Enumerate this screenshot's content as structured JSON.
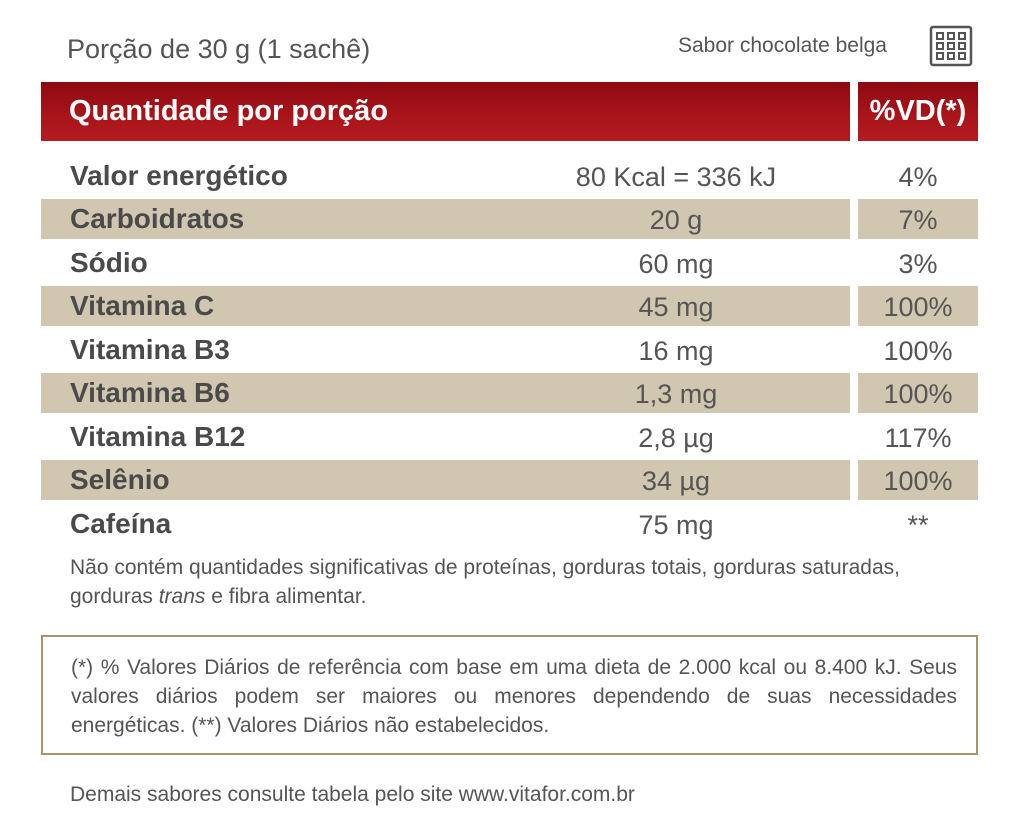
{
  "header": {
    "serving": "Porção de 30 g (1 sachê)",
    "flavor": "Sabor chocolate belga",
    "flavor_icon": "chocolate-bar-icon"
  },
  "table": {
    "title": "Quantidade por porção",
    "vd_header": "%VD(*)",
    "rows": [
      {
        "name": "Valor energético",
        "amount": "80 Kcal = 336 kJ",
        "vd": "4%"
      },
      {
        "name": "Carboidratos",
        "amount": "20 g",
        "vd": "7%"
      },
      {
        "name": "Sódio",
        "amount": "60 mg",
        "vd": "3%"
      },
      {
        "name": "Vitamina C",
        "amount": "45 mg",
        "vd": "100%"
      },
      {
        "name": "Vitamina B3",
        "amount": "16 mg",
        "vd": "100%"
      },
      {
        "name": "Vitamina B6",
        "amount": "1,3 mg",
        "vd": "100%"
      },
      {
        "name": "Vitamina B12",
        "amount": "2,8 µg",
        "vd": "117%"
      },
      {
        "name": "Selênio",
        "amount": "34 µg",
        "vd": "100%"
      },
      {
        "name": "Cafeína",
        "amount": "75 mg",
        "vd": "**"
      }
    ]
  },
  "note": {
    "before_italic": "Não contém quantidades significativas de proteínas, gorduras totais, gorduras saturadas, gorduras ",
    "italic": "trans",
    "after_italic": " e fibra alimentar."
  },
  "reference": "(*) % Valores Diários de referência com base em uma dieta de 2.000 kcal ou 8.400 kJ. Seus valores diários podem ser maiores ou menores dependendo de suas necessidades energéticas. (**) Valores Diários não estabelecidos.",
  "footer": "Demais sabores consulte tabela pelo site www.vitafor.com.br",
  "colors": {
    "header_red": "#a8141a",
    "row_shade": "#d1c7b1",
    "box_border": "#a8936a"
  }
}
